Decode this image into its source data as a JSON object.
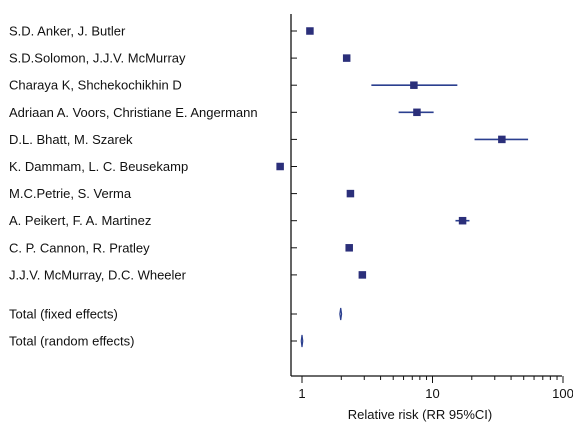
{
  "chart_data": {
    "type": "forest",
    "xlabel": "Relative risk (RR 95%CI)",
    "x_scale": "log",
    "xlim": [
      0.7,
      100
    ],
    "x_ticks": [
      1,
      10,
      100
    ],
    "x_tick_labels": [
      "1",
      "10",
      "100"
    ],
    "grid": false,
    "marker_color": "#2b2f7a",
    "line_color": "#2b3f8f",
    "studies": [
      {
        "label": "S.D. Anker, J. Butler",
        "estimate": 1.15,
        "lower": null,
        "upper": null
      },
      {
        "label": "S.D.Solomon, J.J.V. McMurray",
        "estimate": 2.2,
        "lower": null,
        "upper": null
      },
      {
        "label": "Charaya K, Shchekochikhin D",
        "estimate": 7.2,
        "lower": 3.4,
        "upper": 15.5
      },
      {
        "label": "Adriaan A. Voors, Christiane E. Angermann",
        "estimate": 7.6,
        "lower": 5.5,
        "upper": 10.2
      },
      {
        "label": "D.L. Bhatt, M. Szarek",
        "estimate": 34,
        "lower": 21,
        "upper": 54
      },
      {
        "label": "K. Dammam, L. C. Beusekamp",
        "estimate": 0.68,
        "lower": null,
        "upper": null
      },
      {
        "label": "M.C.Petrie, S. Verma",
        "estimate": 2.35,
        "lower": null,
        "upper": null
      },
      {
        "label": "A. Peikert, F. A. Martinez",
        "estimate": 17,
        "lower": 15,
        "upper": 19.2
      },
      {
        "label": "C. P. Cannon, R. Pratley",
        "estimate": 2.3,
        "lower": null,
        "upper": null
      },
      {
        "label": "J.J.V. McMurray, D.C. Wheeler",
        "estimate": 2.9,
        "lower": null,
        "upper": null
      }
    ],
    "totals": [
      {
        "label": "Total (fixed effects)",
        "estimate": 1.98,
        "lower": 1.95,
        "upper": 2.01
      },
      {
        "label": "Total (random effects)",
        "estimate": 1.0,
        "lower": 0.99,
        "upper": 1.01
      }
    ]
  }
}
